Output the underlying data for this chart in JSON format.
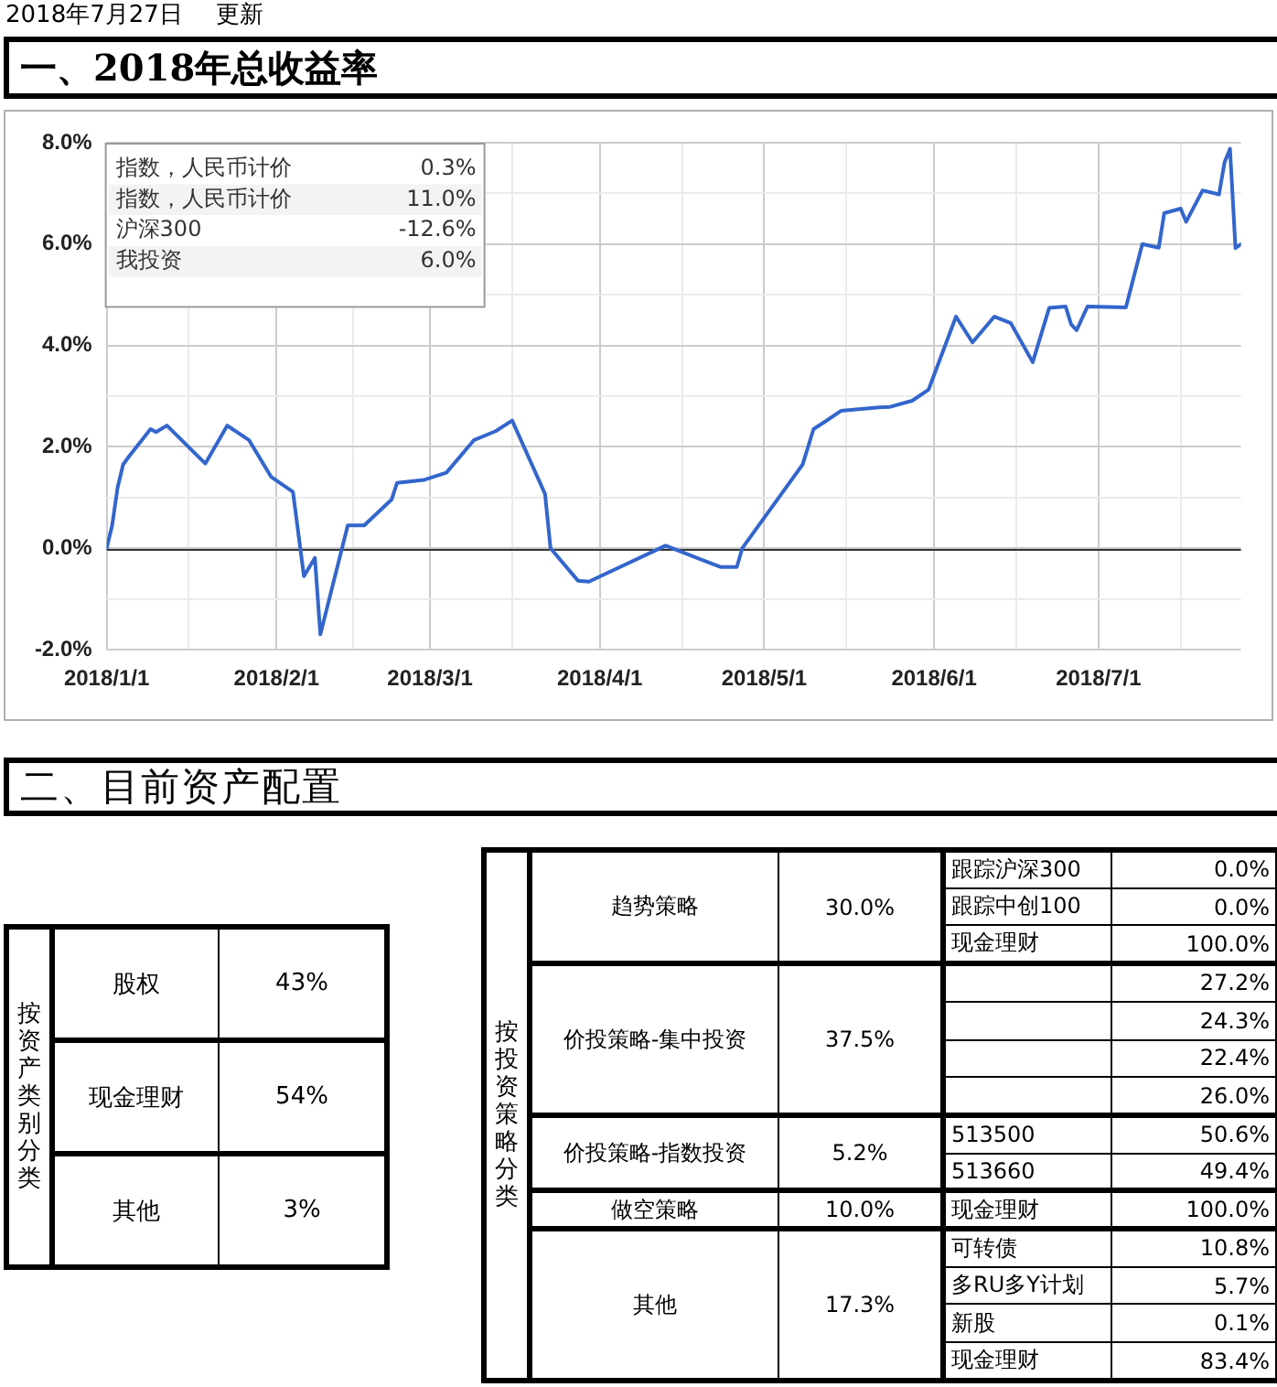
{
  "chart_data": [
    {
      "type": "line",
      "subtitle": "2018年7月27日 更新",
      "title": "一、2018年总收益率",
      "x": [
        "2018-01-01",
        "2018-01-02",
        "2018-01-03",
        "2018-01-04",
        "2018-01-05",
        "2018-01-09",
        "2018-01-10",
        "2018-01-12",
        "2018-01-19",
        "2018-01-23",
        "2018-01-27",
        "2018-01-31",
        "2018-02-04",
        "2018-02-06",
        "2018-02-08",
        "2018-02-09",
        "2018-02-14",
        "2018-02-17",
        "2018-02-22",
        "2018-02-23",
        "2018-02-28",
        "2018-03-04",
        "2018-03-09",
        "2018-03-13",
        "2018-03-16",
        "2018-03-22",
        "2018-03-23",
        "2018-03-28",
        "2018-03-30",
        "2018-04-13",
        "2018-04-23",
        "2018-04-26",
        "2018-04-27",
        "2018-05-08",
        "2018-05-10",
        "2018-05-12",
        "2018-05-15",
        "2018-05-22",
        "2018-05-24",
        "2018-05-28",
        "2018-05-31",
        "2018-06-05",
        "2018-06-08",
        "2018-06-12",
        "2018-06-15",
        "2018-06-19",
        "2018-06-22",
        "2018-06-25",
        "2018-06-26",
        "2018-06-27",
        "2018-06-29",
        "2018-07-06",
        "2018-07-09",
        "2018-07-12",
        "2018-07-13",
        "2018-07-16",
        "2018-07-17",
        "2018-07-20",
        "2018-07-23",
        "2018-07-24",
        "2018-07-25",
        "2018-07-26",
        "2018-07-27"
      ],
      "series": [
        {
          "color": "#3366cc",
          "values": [
            0,
            0.45,
            1.2,
            1.65,
            1.8,
            2.35,
            2.29,
            2.42,
            1.67,
            2.42,
            2.13,
            1.41,
            1.11,
            -0.55,
            -0.19,
            -1.7,
            0.45,
            0.45,
            0.96,
            1.29,
            1.35,
            1.49,
            2.13,
            2.31,
            2.52,
            1.07,
            0,
            -0.64,
            -0.66,
            0.05,
            -0.37,
            -0.37,
            0,
            1.65,
            2.35,
            2.49,
            2.71,
            2.78,
            2.79,
            2.91,
            3.13,
            4.57,
            4.06,
            4.57,
            4.44,
            3.67,
            4.74,
            4.77,
            4.42,
            4.3,
            4.77,
            4.75,
            6.0,
            5.93,
            6.61,
            6.7,
            6.44,
            7.06,
            6.98,
            7.61,
            7.88,
            5.92,
            6.0
          ]
        }
      ],
      "xlim": [
        "2018-01-01",
        "2018-07-27"
      ],
      "xticks": [
        {
          "value": "2018-01-01",
          "label": "2018/1/1"
        },
        {
          "value": "2018-01-16",
          "label": null
        },
        {
          "value": "2018-02-01",
          "label": "2018/2/1"
        },
        {
          "value": "2018-02-15",
          "label": null
        },
        {
          "value": "2018-03-01",
          "label": "2018/3/1"
        },
        {
          "value": "2018-03-16",
          "label": null
        },
        {
          "value": "2018-04-01",
          "label": "2018/4/1"
        },
        {
          "value": "2018-04-16",
          "label": null
        },
        {
          "value": "2018-05-01",
          "label": "2018/5/1"
        },
        {
          "value": "2018-05-16",
          "label": null
        },
        {
          "value": "2018-06-01",
          "label": "2018/6/1"
        },
        {
          "value": "2018-06-16",
          "label": null
        },
        {
          "value": "2018-07-01",
          "label": "2018/7/1"
        },
        {
          "value": "2018-07-16",
          "label": null
        }
      ],
      "ylim": [
        -2,
        8
      ],
      "yticks": [
        {
          "value": -2,
          "label": "-2.0%"
        },
        {
          "value": -1,
          "label": null
        },
        {
          "value": 0,
          "label": "0.0%"
        },
        {
          "value": 1,
          "label": null
        },
        {
          "value": 2,
          "label": "2.0%"
        },
        {
          "value": 3,
          "label": null
        },
        {
          "value": 4,
          "label": "4.0%"
        },
        {
          "value": 5,
          "label": null
        },
        {
          "value": 6,
          "label": "6.0%"
        },
        {
          "value": 7,
          "label": null
        },
        {
          "value": 8,
          "label": "8.0%"
        }
      ],
      "grid": true,
      "ref_lines": [
        {
          "axis": "y",
          "value": 0,
          "color": "#333333"
        }
      ],
      "annotations": [
        "指数，人民币计价",
        "0.3%",
        "指数，人民币计价",
        "11.0%",
        "沪深300",
        "-12.6%",
        "我投资",
        "6.0%"
      ]
    },
    {
      "type": "other",
      "title": "二、目前资产配置",
      "ylabel": "按资产类别分类",
      "cell_labels": [
        [
          "股权",
          "43%"
        ],
        [
          "现金理财",
          "54%"
        ],
        [
          "其他",
          "3%"
        ]
      ]
    },
    {
      "type": "other",
      "ylabel": "按投资策略分类",
      "cell_labels": [
        [
          "趋势策略",
          "30.0%",
          "跟踪沪深300",
          "0.0%"
        ],
        [
          null,
          null,
          "跟踪中创100",
          "0.0%"
        ],
        [
          null,
          null,
          "现金理财",
          "100.0%"
        ],
        [
          "价投策略-集中投资",
          "37.5%",
          null,
          "27.2%"
        ],
        [
          null,
          null,
          null,
          "24.3%"
        ],
        [
          null,
          null,
          null,
          "22.4%"
        ],
        [
          null,
          null,
          null,
          "26.0%"
        ],
        [
          "价投策略-指数投资",
          "5.2%",
          "513500",
          "50.6%"
        ],
        [
          null,
          null,
          "513660",
          "49.4%"
        ],
        [
          "做空策略",
          "10.0%",
          "现金理财",
          "100.0%"
        ],
        [
          "其他",
          "17.3%",
          "可转债",
          "10.8%"
        ],
        [
          null,
          null,
          "多RU多Y计划",
          "5.7%"
        ],
        [
          null,
          null,
          "新股",
          "0.1%"
        ],
        [
          null,
          null,
          "现金理财",
          "83.4%"
        ]
      ]
    }
  ]
}
